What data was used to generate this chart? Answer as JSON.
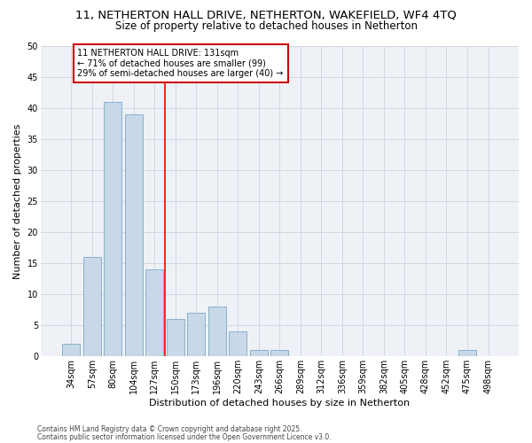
{
  "title1": "11, NETHERTON HALL DRIVE, NETHERTON, WAKEFIELD, WF4 4TQ",
  "title2": "Size of property relative to detached houses in Netherton",
  "xlabel": "Distribution of detached houses by size in Netherton",
  "ylabel": "Number of detached properties",
  "categories": [
    "34sqm",
    "57sqm",
    "80sqm",
    "104sqm",
    "127sqm",
    "150sqm",
    "173sqm",
    "196sqm",
    "220sqm",
    "243sqm",
    "266sqm",
    "289sqm",
    "312sqm",
    "336sqm",
    "359sqm",
    "382sqm",
    "405sqm",
    "428sqm",
    "452sqm",
    "475sqm",
    "498sqm"
  ],
  "values": [
    2,
    16,
    41,
    39,
    14,
    6,
    7,
    8,
    4,
    1,
    1,
    0,
    0,
    0,
    0,
    0,
    0,
    0,
    0,
    1,
    0
  ],
  "bar_color": "#c8d8e8",
  "bar_edge_color": "#7fa8c8",
  "grid_color": "#d0d8e0",
  "background_color": "#eef2f7",
  "red_line_x": 4.5,
  "annotation_text": "11 NETHERTON HALL DRIVE: 131sqm\n← 71% of detached houses are smaller (99)\n29% of semi-detached houses are larger (40) →",
  "annotation_box_facecolor": "#ffffff",
  "annotation_box_edgecolor": "#cc0000",
  "footer1": "Contains HM Land Registry data © Crown copyright and database right 2025.",
  "footer2": "Contains public sector information licensed under the Open Government Licence v3.0.",
  "ylim": [
    0,
    50
  ],
  "yticks": [
    0,
    5,
    10,
    15,
    20,
    25,
    30,
    35,
    40,
    45,
    50
  ],
  "title_fontsize": 9.5,
  "subtitle_fontsize": 8.5,
  "tick_fontsize": 7,
  "ylabel_fontsize": 8,
  "xlabel_fontsize": 8,
  "annotation_fontsize": 7,
  "footer_fontsize": 5.5
}
